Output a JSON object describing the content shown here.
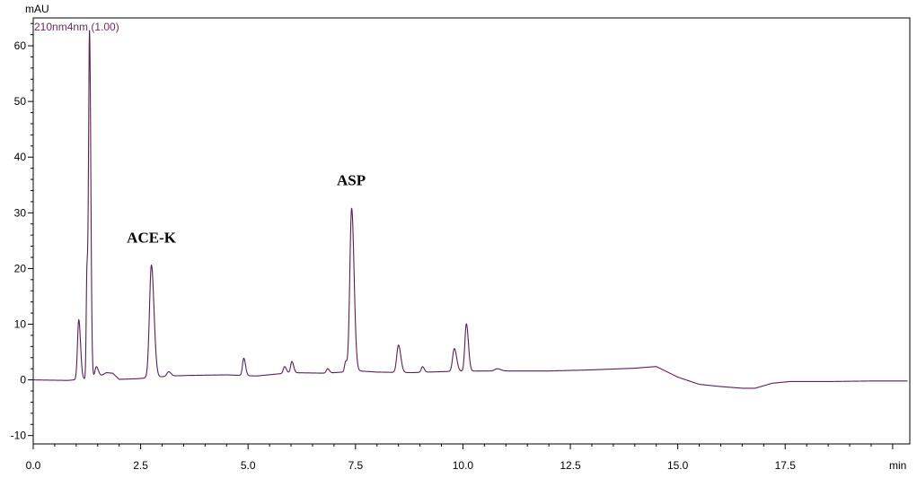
{
  "chart_data": {
    "type": "line",
    "y_unit": "mAU",
    "x_unit": "min",
    "channel_label": "210nm4nm (1.00)",
    "xlim": [
      0,
      20.4
    ],
    "ylim": [
      -11.5,
      65
    ],
    "x_ticks": [
      0.0,
      2.5,
      5.0,
      7.5,
      10.0,
      12.5,
      15.0,
      17.5
    ],
    "x_tick_labels": [
      "0.0",
      "2.5",
      "5.0",
      "7.5",
      "10.0",
      "12.5",
      "15.0",
      "17.5"
    ],
    "y_ticks": [
      -10,
      0,
      10,
      20,
      30,
      40,
      50,
      60
    ],
    "y_tick_labels": [
      "-10",
      "0",
      "10",
      "20",
      "30",
      "40",
      "50",
      "60"
    ],
    "line_color": "#5a1f55",
    "annotations": [
      {
        "text": "ACE-K",
        "x": 2.75,
        "y": 20.5
      },
      {
        "text": "ASP",
        "x": 7.4,
        "y": 30.8
      }
    ],
    "baseline": [
      [
        0.0,
        0.0
      ],
      [
        0.8,
        -0.1
      ],
      [
        1.5,
        0.4
      ],
      [
        1.7,
        1.3
      ],
      [
        1.85,
        1.2
      ],
      [
        2.0,
        0.1
      ],
      [
        2.4,
        0.2
      ],
      [
        3.2,
        0.7
      ],
      [
        3.6,
        0.8
      ],
      [
        4.5,
        0.9
      ],
      [
        5.2,
        0.7
      ],
      [
        6.0,
        1.3
      ],
      [
        6.8,
        1.2
      ],
      [
        7.6,
        1.6
      ],
      [
        8.0,
        1.4
      ],
      [
        8.8,
        1.3
      ],
      [
        9.6,
        1.5
      ],
      [
        10.4,
        1.6
      ],
      [
        11.0,
        1.6
      ],
      [
        12.0,
        1.6
      ],
      [
        13.0,
        1.8
      ],
      [
        14.0,
        2.1
      ],
      [
        14.5,
        2.4
      ],
      [
        15.0,
        0.5
      ],
      [
        15.5,
        -0.8
      ],
      [
        16.0,
        -1.2
      ],
      [
        16.5,
        -1.5
      ],
      [
        16.8,
        -1.5
      ],
      [
        17.2,
        -0.6
      ],
      [
        17.6,
        -0.3
      ],
      [
        18.5,
        -0.3
      ],
      [
        19.5,
        -0.2
      ],
      [
        20.3,
        -0.2
      ]
    ],
    "peaks": [
      {
        "rt": 1.06,
        "height": 10.7,
        "width": 0.03
      },
      {
        "rt": 1.25,
        "height": 19.0,
        "width": 0.017
      },
      {
        "rt": 1.31,
        "height": 62.0,
        "width": 0.022
      },
      {
        "rt": 1.47,
        "height": 2.0,
        "width": 0.035
      },
      {
        "rt": 2.75,
        "height": 20.2,
        "width": 0.045
      },
      {
        "rt": 3.15,
        "height": 0.8,
        "width": 0.04
      },
      {
        "rt": 4.9,
        "height": 3.1,
        "width": 0.03
      },
      {
        "rt": 5.85,
        "height": 1.2,
        "width": 0.03
      },
      {
        "rt": 6.02,
        "height": 2.0,
        "width": 0.03
      },
      {
        "rt": 6.85,
        "height": 0.8,
        "width": 0.03
      },
      {
        "rt": 7.27,
        "height": 1.8,
        "width": 0.025
      },
      {
        "rt": 7.41,
        "height": 29.3,
        "width": 0.042
      },
      {
        "rt": 8.5,
        "height": 4.9,
        "width": 0.04
      },
      {
        "rt": 9.06,
        "height": 1.0,
        "width": 0.03
      },
      {
        "rt": 9.8,
        "height": 4.1,
        "width": 0.04
      },
      {
        "rt": 10.08,
        "height": 8.5,
        "width": 0.035
      },
      {
        "rt": 10.8,
        "height": 0.4,
        "width": 0.06
      }
    ]
  }
}
